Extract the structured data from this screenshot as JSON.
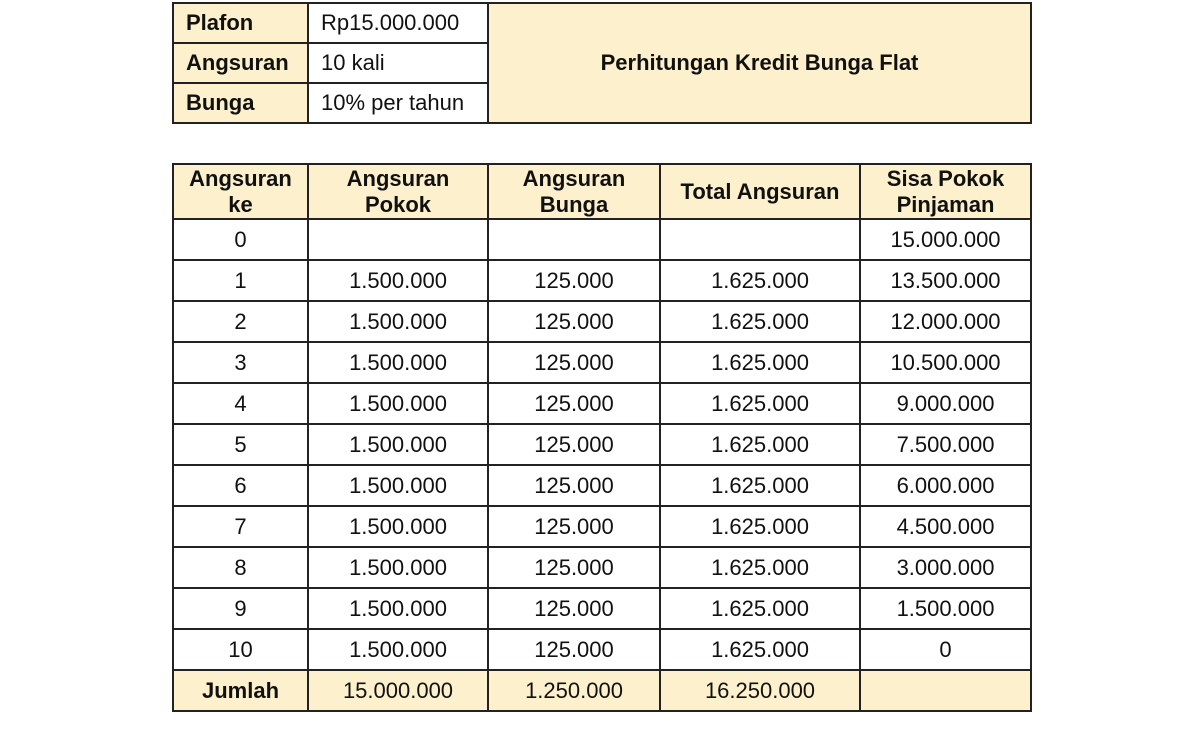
{
  "info": {
    "rows": [
      {
        "label": "Plafon",
        "value": "Rp15.000.000"
      },
      {
        "label": "Angsuran",
        "value": "10 kali"
      },
      {
        "label": "Bunga",
        "value": "10% per tahun"
      }
    ],
    "title": "Perhitungan Kredit Bunga Flat"
  },
  "schedule": {
    "headers": [
      [
        "Angsuran",
        "ke"
      ],
      [
        "Angsuran",
        "Pokok"
      ],
      [
        "Angsuran",
        "Bunga"
      ],
      [
        "Total Angsuran",
        ""
      ],
      [
        "Sisa Pokok",
        "Pinjaman"
      ]
    ],
    "rows": [
      [
        "0",
        "",
        "",
        "",
        "15.000.000"
      ],
      [
        "1",
        "1.500.000",
        "125.000",
        "1.625.000",
        "13.500.000"
      ],
      [
        "2",
        "1.500.000",
        "125.000",
        "1.625.000",
        "12.000.000"
      ],
      [
        "3",
        "1.500.000",
        "125.000",
        "1.625.000",
        "10.500.000"
      ],
      [
        "4",
        "1.500.000",
        "125.000",
        "1.625.000",
        "9.000.000"
      ],
      [
        "5",
        "1.500.000",
        "125.000",
        "1.625.000",
        "7.500.000"
      ],
      [
        "6",
        "1.500.000",
        "125.000",
        "1.625.000",
        "6.000.000"
      ],
      [
        "7",
        "1.500.000",
        "125.000",
        "1.625.000",
        "4.500.000"
      ],
      [
        "8",
        "1.500.000",
        "125.000",
        "1.625.000",
        "3.000.000"
      ],
      [
        "9",
        "1.500.000",
        "125.000",
        "1.625.000",
        "1.500.000"
      ],
      [
        "10",
        "1.500.000",
        "125.000",
        "1.625.000",
        "0"
      ]
    ],
    "total": [
      "Jumlah",
      "15.000.000",
      "1.250.000",
      "16.250.000",
      ""
    ]
  },
  "colors": {
    "header_fill": "#fdf0cc",
    "border": "#222222"
  }
}
